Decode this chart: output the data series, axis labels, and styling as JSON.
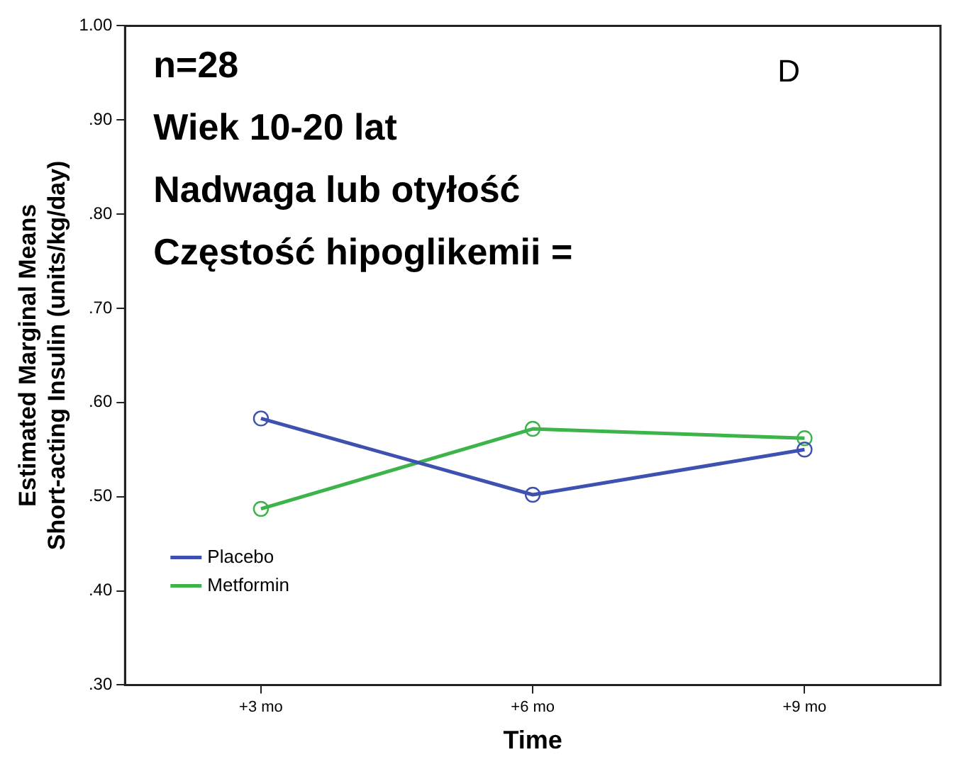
{
  "chart_data": {
    "type": "line",
    "xlabel": "Time",
    "ylabel": "Estimated Marginal Means\nShort-acting Insulin (units/kg/day)",
    "categories": [
      "+3 mo",
      "+6 mo",
      "+9 mo"
    ],
    "series": [
      {
        "name": "Placebo",
        "color": "#3f51b0",
        "values": [
          0.583,
          0.502,
          0.55
        ]
      },
      {
        "name": "Metformin",
        "color": "#3cb44a",
        "values": [
          0.487,
          0.572,
          0.562
        ]
      }
    ],
    "ylim": [
      0.3,
      1.0
    ],
    "yticks": [
      {
        "value": 0.3,
        "label": ".30"
      },
      {
        "value": 0.4,
        "label": ".40"
      },
      {
        "value": 0.5,
        "label": ".50"
      },
      {
        "value": 0.6,
        "label": ".60"
      },
      {
        "value": 0.7,
        "label": ".70"
      },
      {
        "value": 0.8,
        "label": ".80"
      },
      {
        "value": 0.9,
        "label": ".90"
      },
      {
        "value": 1.0,
        "label": "1.00"
      }
    ],
    "grid": false,
    "legend": "bottom left",
    "marker": "circle",
    "line_style": "solid",
    "annotations": [
      "n=28",
      "Wiek 10-20 lat",
      "Nadwaga lub otyłość",
      "Częstość hipoglikemii =",
      "D"
    ]
  }
}
